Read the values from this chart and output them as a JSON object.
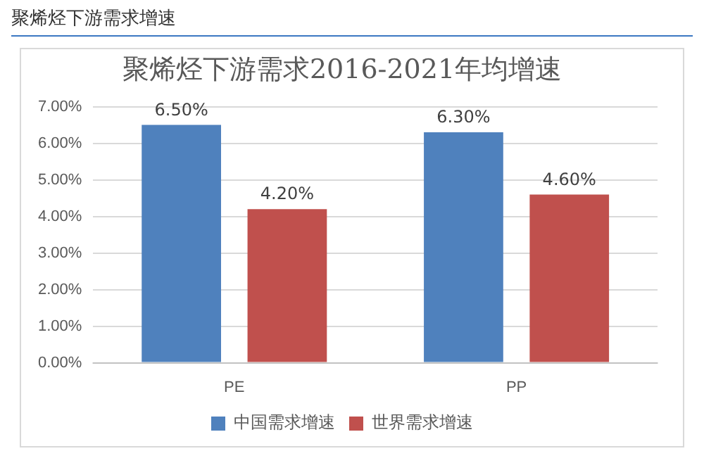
{
  "chart_data": {
    "type": "bar",
    "title": "聚烯烃下游需求2016-2021年均增速",
    "subtitle": "聚烯烃下游需求增速",
    "categories": [
      "PE",
      "PP"
    ],
    "series": [
      {
        "name": "中国需求增速",
        "color": "#4f81bd",
        "values": [
          6.5,
          6.3
        ],
        "value_labels": [
          "6.50%",
          "6.30%"
        ]
      },
      {
        "name": "世界需求增速",
        "color": "#c0504d",
        "values": [
          4.2,
          4.6
        ],
        "value_labels": [
          "4.20%",
          "4.60%"
        ]
      }
    ],
    "ylim": [
      0,
      7
    ],
    "yticks": [
      {
        "value": 0,
        "label": "0.00%"
      },
      {
        "value": 1,
        "label": "1.00%"
      },
      {
        "value": 2,
        "label": "2.00%"
      },
      {
        "value": 3,
        "label": "3.00%"
      },
      {
        "value": 4,
        "label": "4.00%"
      },
      {
        "value": 5,
        "label": "5.00%"
      },
      {
        "value": 6,
        "label": "6.00%"
      },
      {
        "value": 7,
        "label": "7.00%"
      }
    ],
    "grid": "y",
    "legend": "bottom"
  }
}
